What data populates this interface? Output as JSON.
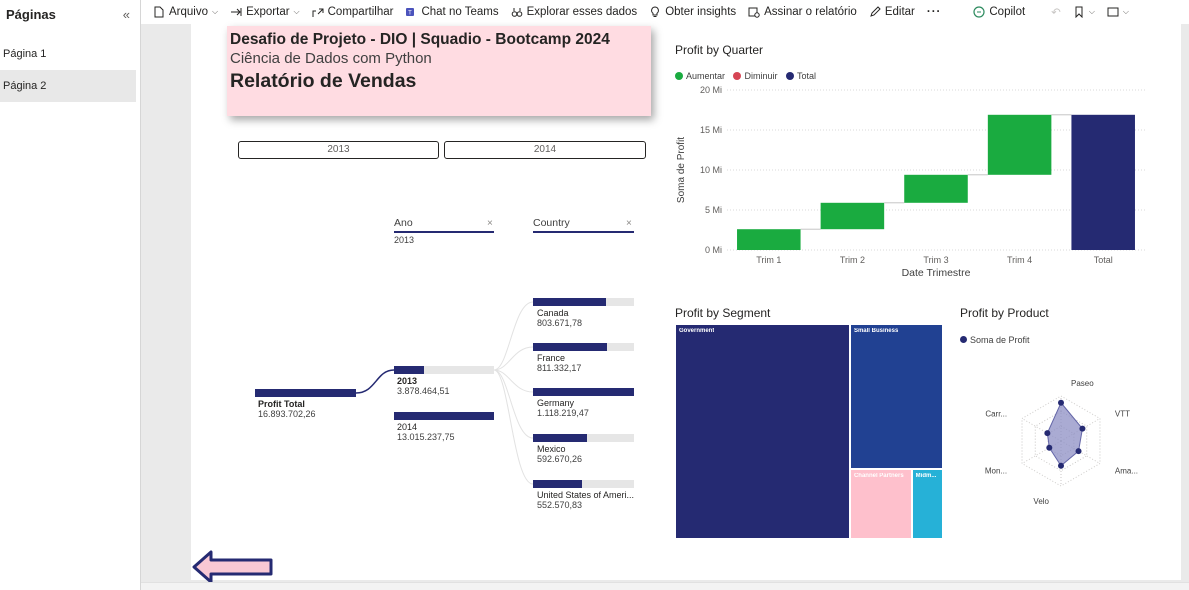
{
  "sidebar": {
    "title": "Páginas",
    "collapse_icon": "«",
    "pages": [
      {
        "label": "Página 1",
        "active": false
      },
      {
        "label": "Página 2",
        "active": true
      }
    ]
  },
  "toolbar": {
    "arquivo": "Arquivo",
    "exportar": "Exportar",
    "compartilhar": "Compartilhar",
    "chat_teams": "Chat no Teams",
    "explorar": "Explorar esses dados",
    "insights": "Obter insights",
    "assinar": "Assinar o relatório",
    "editar": "Editar",
    "more": "···",
    "copilot": "Copilot"
  },
  "report": {
    "title_line1": "Desafio de Projeto - DIO | Squadio - Bootcamp 2024",
    "title_line2": "Ciência de Dados com Python",
    "title_line3": "Relatório de Vendas",
    "slicer": [
      "2013",
      "2014"
    ]
  },
  "decomposition": {
    "col1_header": "Ano",
    "col1_sub": "2013",
    "col2_header": "Country",
    "close_icon": "×",
    "root_label": "Profit Total",
    "root_value": "16.893.702,26",
    "years": [
      {
        "label": "2013",
        "value": "3.878.464,51",
        "fraction": 0.3
      },
      {
        "label": "2014",
        "value": "13.015.237,75",
        "fraction": 1.0
      }
    ],
    "countries": [
      {
        "label": "Canada",
        "value": "803.671,78",
        "fraction": 0.72
      },
      {
        "label": "France",
        "value": "811.332,17",
        "fraction": 0.73
      },
      {
        "label": "Germany",
        "value": "1.118.219,47",
        "fraction": 1.0
      },
      {
        "label": "Mexico",
        "value": "592.670,26",
        "fraction": 0.53
      },
      {
        "label": "United States of Ameri...",
        "value": "552.570,83",
        "fraction": 0.49
      }
    ]
  },
  "colors": {
    "navy": "#252a72",
    "green": "#1aab40",
    "red": "#d64554",
    "treemap_smallbiz": "#214192",
    "treemap_channel": "#fec0cc",
    "treemap_mid": "#26b1d7",
    "radar_fill": "#8d8fc4"
  },
  "chart_data": [
    {
      "type": "waterfall",
      "title": "Profit by Quarter",
      "legend": [
        "Aumentar",
        "Diminuir",
        "Total"
      ],
      "xlabel": "Date Trimestre",
      "ylabel": "Soma de Profit",
      "yticks": [
        "0 Mi",
        "5 Mi",
        "10 Mi",
        "15 Mi",
        "20 Mi"
      ],
      "ylim": [
        0,
        20
      ],
      "categories": [
        "Trim 1",
        "Trim 2",
        "Trim 3",
        "Trim 4",
        "Total"
      ],
      "values": [
        2.6,
        3.3,
        3.5,
        7.5,
        16.9
      ]
    },
    {
      "type": "treemap",
      "title": "Profit by Segment",
      "categories": [
        "Government",
        "Small Business",
        "Channel Partners",
        "Midm..."
      ],
      "values": [
        11.4,
        4.1,
        1.3,
        0.66
      ]
    },
    {
      "type": "radar",
      "title": "Profit by Product",
      "legend": [
        "Soma de Profit"
      ],
      "categories": [
        "Paseo",
        "VTT",
        "Ama...",
        "Velo",
        "Mon...",
        "Carr..."
      ],
      "values": [
        0.85,
        0.55,
        0.45,
        0.55,
        0.3,
        0.35
      ]
    }
  ]
}
